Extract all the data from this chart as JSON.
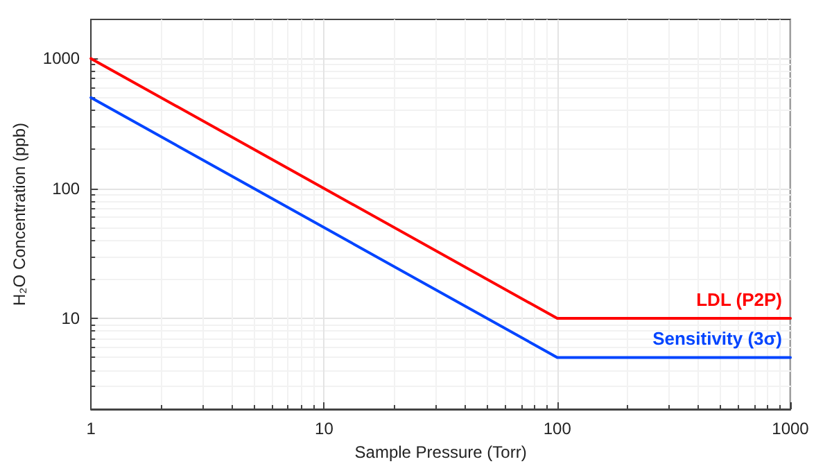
{
  "chart_data": {
    "type": "line",
    "xlabel": "Sample Pressure (Torr)",
    "ylabel": "H₂O Concentration (ppb)",
    "x": [
      1,
      100,
      1000
    ],
    "series": [
      {
        "name": "LDL (P2P)",
        "color": "#ff0000",
        "values": [
          1000,
          10,
          10
        ]
      },
      {
        "name": "Sensitivity (3σ)",
        "color": "#0044ff",
        "values": [
          500,
          5,
          5
        ]
      }
    ],
    "log": "xy",
    "xlim": [
      1,
      1000
    ],
    "ylim": [
      2,
      2000
    ],
    "xticks": [
      1,
      10,
      100,
      1000
    ],
    "yticks": [
      10,
      100,
      1000
    ],
    "grid": true,
    "marker": "none",
    "line_style": "solid",
    "legend": false
  }
}
